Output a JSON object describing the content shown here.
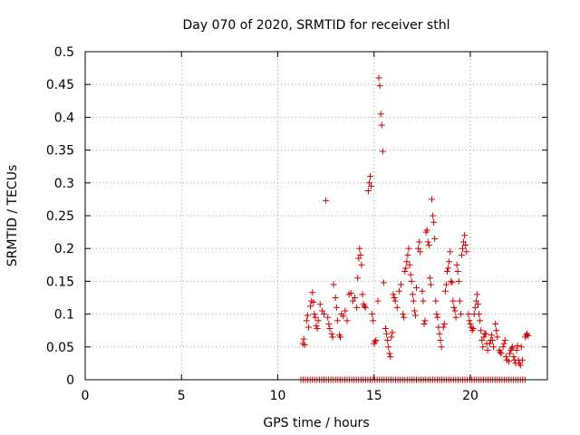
{
  "chart_data": {
    "type": "scatter",
    "title": "Day 070 of 2020, SRMTID for receiver sthl",
    "xlabel": "GPS time / hours",
    "ylabel": "SRMTID / TECUs",
    "xlim": [
      0,
      24
    ],
    "ylim": [
      0,
      0.5
    ],
    "xticks": [
      0,
      5,
      10,
      15,
      20
    ],
    "yticks": [
      0,
      0.05,
      0.1,
      0.15,
      0.2,
      0.25,
      0.3,
      0.35,
      0.4,
      0.45,
      0.5
    ],
    "grid": true,
    "marker": "+",
    "series_color": "#cc0000",
    "series": [
      {
        "name": "SRMTID",
        "points": [
          [
            11.3,
            0.055
          ],
          [
            11.35,
            0.062
          ],
          [
            11.4,
            0.053
          ],
          [
            11.5,
            0.09
          ],
          [
            11.55,
            0.098
          ],
          [
            11.6,
            0.08
          ],
          [
            11.7,
            0.112
          ],
          [
            11.75,
            0.12
          ],
          [
            11.8,
            0.133
          ],
          [
            11.85,
            0.118
          ],
          [
            11.9,
            0.1
          ],
          [
            11.95,
            0.095
          ],
          [
            12.0,
            0.082
          ],
          [
            12.05,
            0.078
          ],
          [
            12.1,
            0.09
          ],
          [
            12.2,
            0.115
          ],
          [
            12.3,
            0.105
          ],
          [
            12.4,
            0.1
          ],
          [
            12.5,
            0.273
          ],
          [
            12.6,
            0.095
          ],
          [
            12.65,
            0.085
          ],
          [
            12.7,
            0.078
          ],
          [
            12.8,
            0.07
          ],
          [
            12.85,
            0.065
          ],
          [
            12.9,
            0.145
          ],
          [
            13.0,
            0.125
          ],
          [
            13.05,
            0.11
          ],
          [
            13.1,
            0.09
          ],
          [
            13.2,
            0.068
          ],
          [
            13.25,
            0.065
          ],
          [
            13.3,
            0.1
          ],
          [
            13.4,
            0.097
          ],
          [
            13.5,
            0.105
          ],
          [
            13.6,
            0.09
          ],
          [
            13.7,
            0.13
          ],
          [
            13.8,
            0.132
          ],
          [
            13.9,
            0.12
          ],
          [
            14.0,
            0.125
          ],
          [
            14.1,
            0.11
          ],
          [
            14.15,
            0.155
          ],
          [
            14.2,
            0.185
          ],
          [
            14.25,
            0.2
          ],
          [
            14.3,
            0.19
          ],
          [
            14.35,
            0.175
          ],
          [
            14.4,
            0.13
          ],
          [
            14.45,
            0.115
          ],
          [
            14.5,
            0.112
          ],
          [
            14.55,
            0.11
          ],
          [
            14.7,
            0.288
          ],
          [
            14.75,
            0.3
          ],
          [
            14.8,
            0.31
          ],
          [
            14.85,
            0.295
          ],
          [
            14.9,
            0.1
          ],
          [
            14.95,
            0.09
          ],
          [
            15.0,
            0.055
          ],
          [
            15.05,
            0.058
          ],
          [
            15.1,
            0.06
          ],
          [
            15.2,
            0.12
          ],
          [
            15.25,
            0.46
          ],
          [
            15.3,
            0.448
          ],
          [
            15.35,
            0.405
          ],
          [
            15.4,
            0.388
          ],
          [
            15.45,
            0.348
          ],
          [
            15.5,
            0.148
          ],
          [
            15.6,
            0.078
          ],
          [
            15.65,
            0.07
          ],
          [
            15.7,
            0.06
          ],
          [
            15.75,
            0.05
          ],
          [
            15.8,
            0.04
          ],
          [
            15.85,
            0.035
          ],
          [
            15.9,
            0.065
          ],
          [
            15.95,
            0.072
          ],
          [
            16.0,
            0.13
          ],
          [
            16.05,
            0.125
          ],
          [
            16.1,
            0.12
          ],
          [
            16.2,
            0.11
          ],
          [
            16.3,
            0.135
          ],
          [
            16.4,
            0.145
          ],
          [
            16.5,
            0.1
          ],
          [
            16.55,
            0.095
          ],
          [
            16.6,
            0.165
          ],
          [
            16.65,
            0.17
          ],
          [
            16.7,
            0.18
          ],
          [
            16.75,
            0.19
          ],
          [
            16.8,
            0.2
          ],
          [
            16.85,
            0.175
          ],
          [
            16.9,
            0.16
          ],
          [
            16.95,
            0.15
          ],
          [
            17.0,
            0.13
          ],
          [
            17.05,
            0.12
          ],
          [
            17.1,
            0.105
          ],
          [
            17.15,
            0.098
          ],
          [
            17.2,
            0.14
          ],
          [
            17.3,
            0.2
          ],
          [
            17.35,
            0.21
          ],
          [
            17.4,
            0.195
          ],
          [
            17.5,
            0.135
          ],
          [
            17.55,
            0.12
          ],
          [
            17.6,
            0.085
          ],
          [
            17.65,
            0.09
          ],
          [
            17.7,
            0.225
          ],
          [
            17.75,
            0.228
          ],
          [
            17.8,
            0.21
          ],
          [
            17.85,
            0.205
          ],
          [
            17.9,
            0.155
          ],
          [
            17.95,
            0.145
          ],
          [
            18.0,
            0.275
          ],
          [
            18.05,
            0.25
          ],
          [
            18.1,
            0.24
          ],
          [
            18.15,
            0.215
          ],
          [
            18.2,
            0.12
          ],
          [
            18.25,
            0.1
          ],
          [
            18.3,
            0.095
          ],
          [
            18.35,
            0.08
          ],
          [
            18.4,
            0.07
          ],
          [
            18.45,
            0.06
          ],
          [
            18.5,
            0.05
          ],
          [
            18.6,
            0.08
          ],
          [
            18.65,
            0.085
          ],
          [
            18.7,
            0.135
          ],
          [
            18.75,
            0.145
          ],
          [
            18.8,
            0.165
          ],
          [
            18.85,
            0.17
          ],
          [
            18.9,
            0.18
          ],
          [
            18.95,
            0.195
          ],
          [
            19.0,
            0.15
          ],
          [
            19.05,
            0.148
          ],
          [
            19.1,
            0.12
          ],
          [
            19.15,
            0.11
          ],
          [
            19.2,
            0.105
          ],
          [
            19.25,
            0.095
          ],
          [
            19.3,
            0.175
          ],
          [
            19.35,
            0.165
          ],
          [
            19.4,
            0.15
          ],
          [
            19.45,
            0.12
          ],
          [
            19.5,
            0.1
          ],
          [
            19.55,
            0.19
          ],
          [
            19.6,
            0.2
          ],
          [
            19.65,
            0.21
          ],
          [
            19.7,
            0.22
          ],
          [
            19.75,
            0.205
          ],
          [
            19.8,
            0.195
          ],
          [
            19.9,
            0.1
          ],
          [
            19.95,
            0.09
          ],
          [
            20.0,
            0.085
          ],
          [
            20.05,
            0.08
          ],
          [
            20.1,
            0.075
          ],
          [
            20.15,
            0.078
          ],
          [
            20.2,
            0.1
          ],
          [
            20.25,
            0.11
          ],
          [
            20.3,
            0.12
          ],
          [
            20.35,
            0.13
          ],
          [
            20.4,
            0.115
          ],
          [
            20.45,
            0.1
          ],
          [
            20.5,
            0.09
          ],
          [
            20.55,
            0.075
          ],
          [
            20.6,
            0.06
          ],
          [
            20.65,
            0.05
          ],
          [
            20.7,
            0.065
          ],
          [
            20.75,
            0.07
          ],
          [
            20.8,
            0.07
          ],
          [
            20.85,
            0.055
          ],
          [
            20.9,
            0.045
          ],
          [
            21.0,
            0.055
          ],
          [
            21.05,
            0.06
          ],
          [
            21.1,
            0.068
          ],
          [
            21.15,
            0.06
          ],
          [
            21.2,
            0.05
          ],
          [
            21.3,
            0.085
          ],
          [
            21.35,
            0.075
          ],
          [
            21.4,
            0.065
          ],
          [
            21.5,
            0.045
          ],
          [
            21.55,
            0.042
          ],
          [
            21.6,
            0.04
          ],
          [
            21.7,
            0.05
          ],
          [
            21.75,
            0.055
          ],
          [
            21.8,
            0.06
          ],
          [
            21.85,
            0.035
          ],
          [
            21.9,
            0.03
          ],
          [
            22.0,
            0.028
          ],
          [
            22.05,
            0.04
          ],
          [
            22.1,
            0.045
          ],
          [
            22.15,
            0.048
          ],
          [
            22.2,
            0.05
          ],
          [
            22.25,
            0.035
          ],
          [
            22.3,
            0.03
          ],
          [
            22.35,
            0.025
          ],
          [
            22.4,
            0.045
          ],
          [
            22.45,
            0.052
          ],
          [
            22.5,
            0.03
          ],
          [
            22.55,
            0.025
          ],
          [
            22.6,
            0.022
          ],
          [
            22.65,
            0.05
          ],
          [
            22.7,
            0.03
          ],
          [
            22.85,
            0.065
          ],
          [
            22.9,
            0.068
          ],
          [
            22.95,
            0.07
          ],
          [
            23.0,
            0.067
          ]
        ]
      }
    ],
    "zero_band": {
      "y": 0,
      "x_start": 11.2,
      "x_end": 22.9,
      "step": 0.12
    }
  }
}
